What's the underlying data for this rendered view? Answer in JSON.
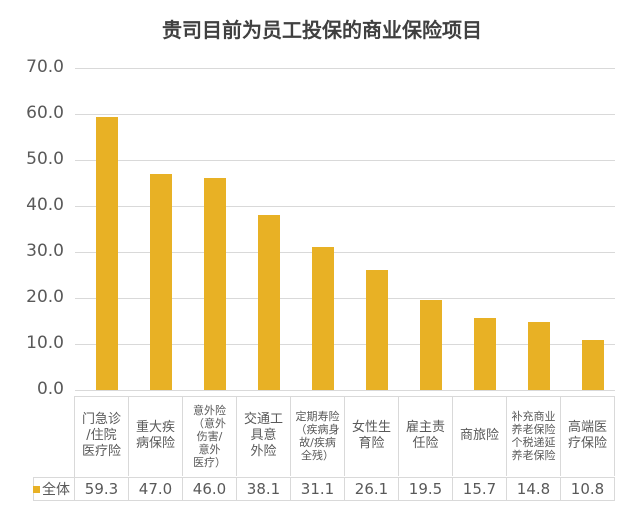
{
  "chart_data": {
    "type": "bar",
    "title": "贵司目前为员工投保的商业保险项目",
    "xlabel": "",
    "ylabel": "",
    "ylim": [
      0,
      70
    ],
    "yticks": [
      "0.0",
      "10.0",
      "20.0",
      "30.0",
      "40.0",
      "50.0",
      "60.0",
      "70.0"
    ],
    "grid": true,
    "legend_position": "bottom-left (data table)",
    "bar_color": "#E8B125",
    "categories": [
      "门急诊/住院医疗险",
      "重大疾病保险",
      "意外险（意外伤害/意外医疗）",
      "交通工具意外险",
      "定期寿险（疾病身故/疾病全残）",
      "女性生育险",
      "雇主责任险",
      "商旅险",
      "补充商业养老保险个税递延养老保险",
      "高端医疗保险"
    ],
    "series": [
      {
        "name": "全体",
        "values": [
          59.3,
          47.0,
          46.0,
          38.1,
          31.1,
          26.1,
          19.5,
          15.7,
          14.8,
          10.8
        ]
      }
    ]
  },
  "table": {
    "legend_label": "全体",
    "category_lines": [
      [
        "门急诊",
        "/住院",
        "医疗险"
      ],
      [
        "重大疾",
        "病保险"
      ],
      [
        "意外险",
        "（意外",
        "伤害/",
        "意外",
        "医疗）"
      ],
      [
        "交通工",
        "具意",
        "外险"
      ],
      [
        "定期寿险",
        "（疾病身",
        "故/疾病",
        "全残）"
      ],
      [
        "女性生",
        "育险"
      ],
      [
        "雇主责",
        "任险"
      ],
      [
        "商旅险"
      ],
      [
        "补充商业",
        "养老保险",
        "个税递延",
        "养老保险"
      ],
      [
        "高端医",
        "疗保险"
      ]
    ],
    "values_text": [
      "59.3",
      "47.0",
      "46.0",
      "38.1",
      "31.1",
      "26.1",
      "19.5",
      "15.7",
      "14.8",
      "10.8"
    ]
  }
}
